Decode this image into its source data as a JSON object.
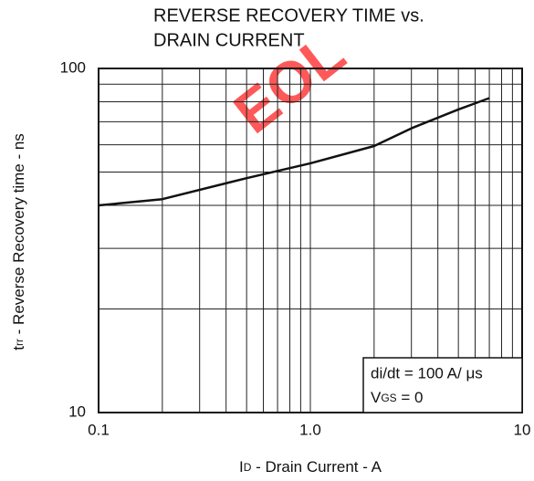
{
  "chart_data": {
    "type": "line",
    "title": [
      "REVERSE RECOVERY TIME vs.",
      "DRAIN CURRENT"
    ],
    "watermark": "EOL",
    "x_label": {
      "symbol": "I",
      "sub": "D",
      "text": " - Drain Current - A"
    },
    "y_label": {
      "symbol": "t",
      "sub": "rr",
      "text": " - Reverse Recovery time - ns"
    },
    "annotation": {
      "line1": "di/dt = 100 A/ μs",
      "line2": {
        "symbol": "V",
        "sub": "GS",
        "text": " = 0"
      }
    },
    "log_x": true,
    "log_y": true,
    "grid": true,
    "xlim": [
      0.1,
      10
    ],
    "ylim": [
      10,
      100
    ],
    "xticks": [
      0.1,
      {
        "value": 1,
        "label": "1.0"
      },
      10
    ],
    "yticks": [
      10,
      100
    ],
    "xminorticks": [
      0.2,
      0.3,
      0.4,
      0.5,
      0.6,
      0.7,
      0.8,
      0.9,
      2,
      3,
      4,
      5,
      6,
      7,
      8,
      9
    ],
    "yminorticks": [
      20,
      30,
      40,
      50,
      60,
      70,
      80,
      90
    ],
    "x": [
      0.1,
      0.2,
      0.5,
      1,
      2,
      3,
      5,
      7
    ],
    "series": [
      {
        "name": "trr",
        "color": "#111111",
        "values": [
          40,
          41.7,
          48,
          53,
          59.5,
          67,
          76,
          82
        ]
      }
    ]
  }
}
